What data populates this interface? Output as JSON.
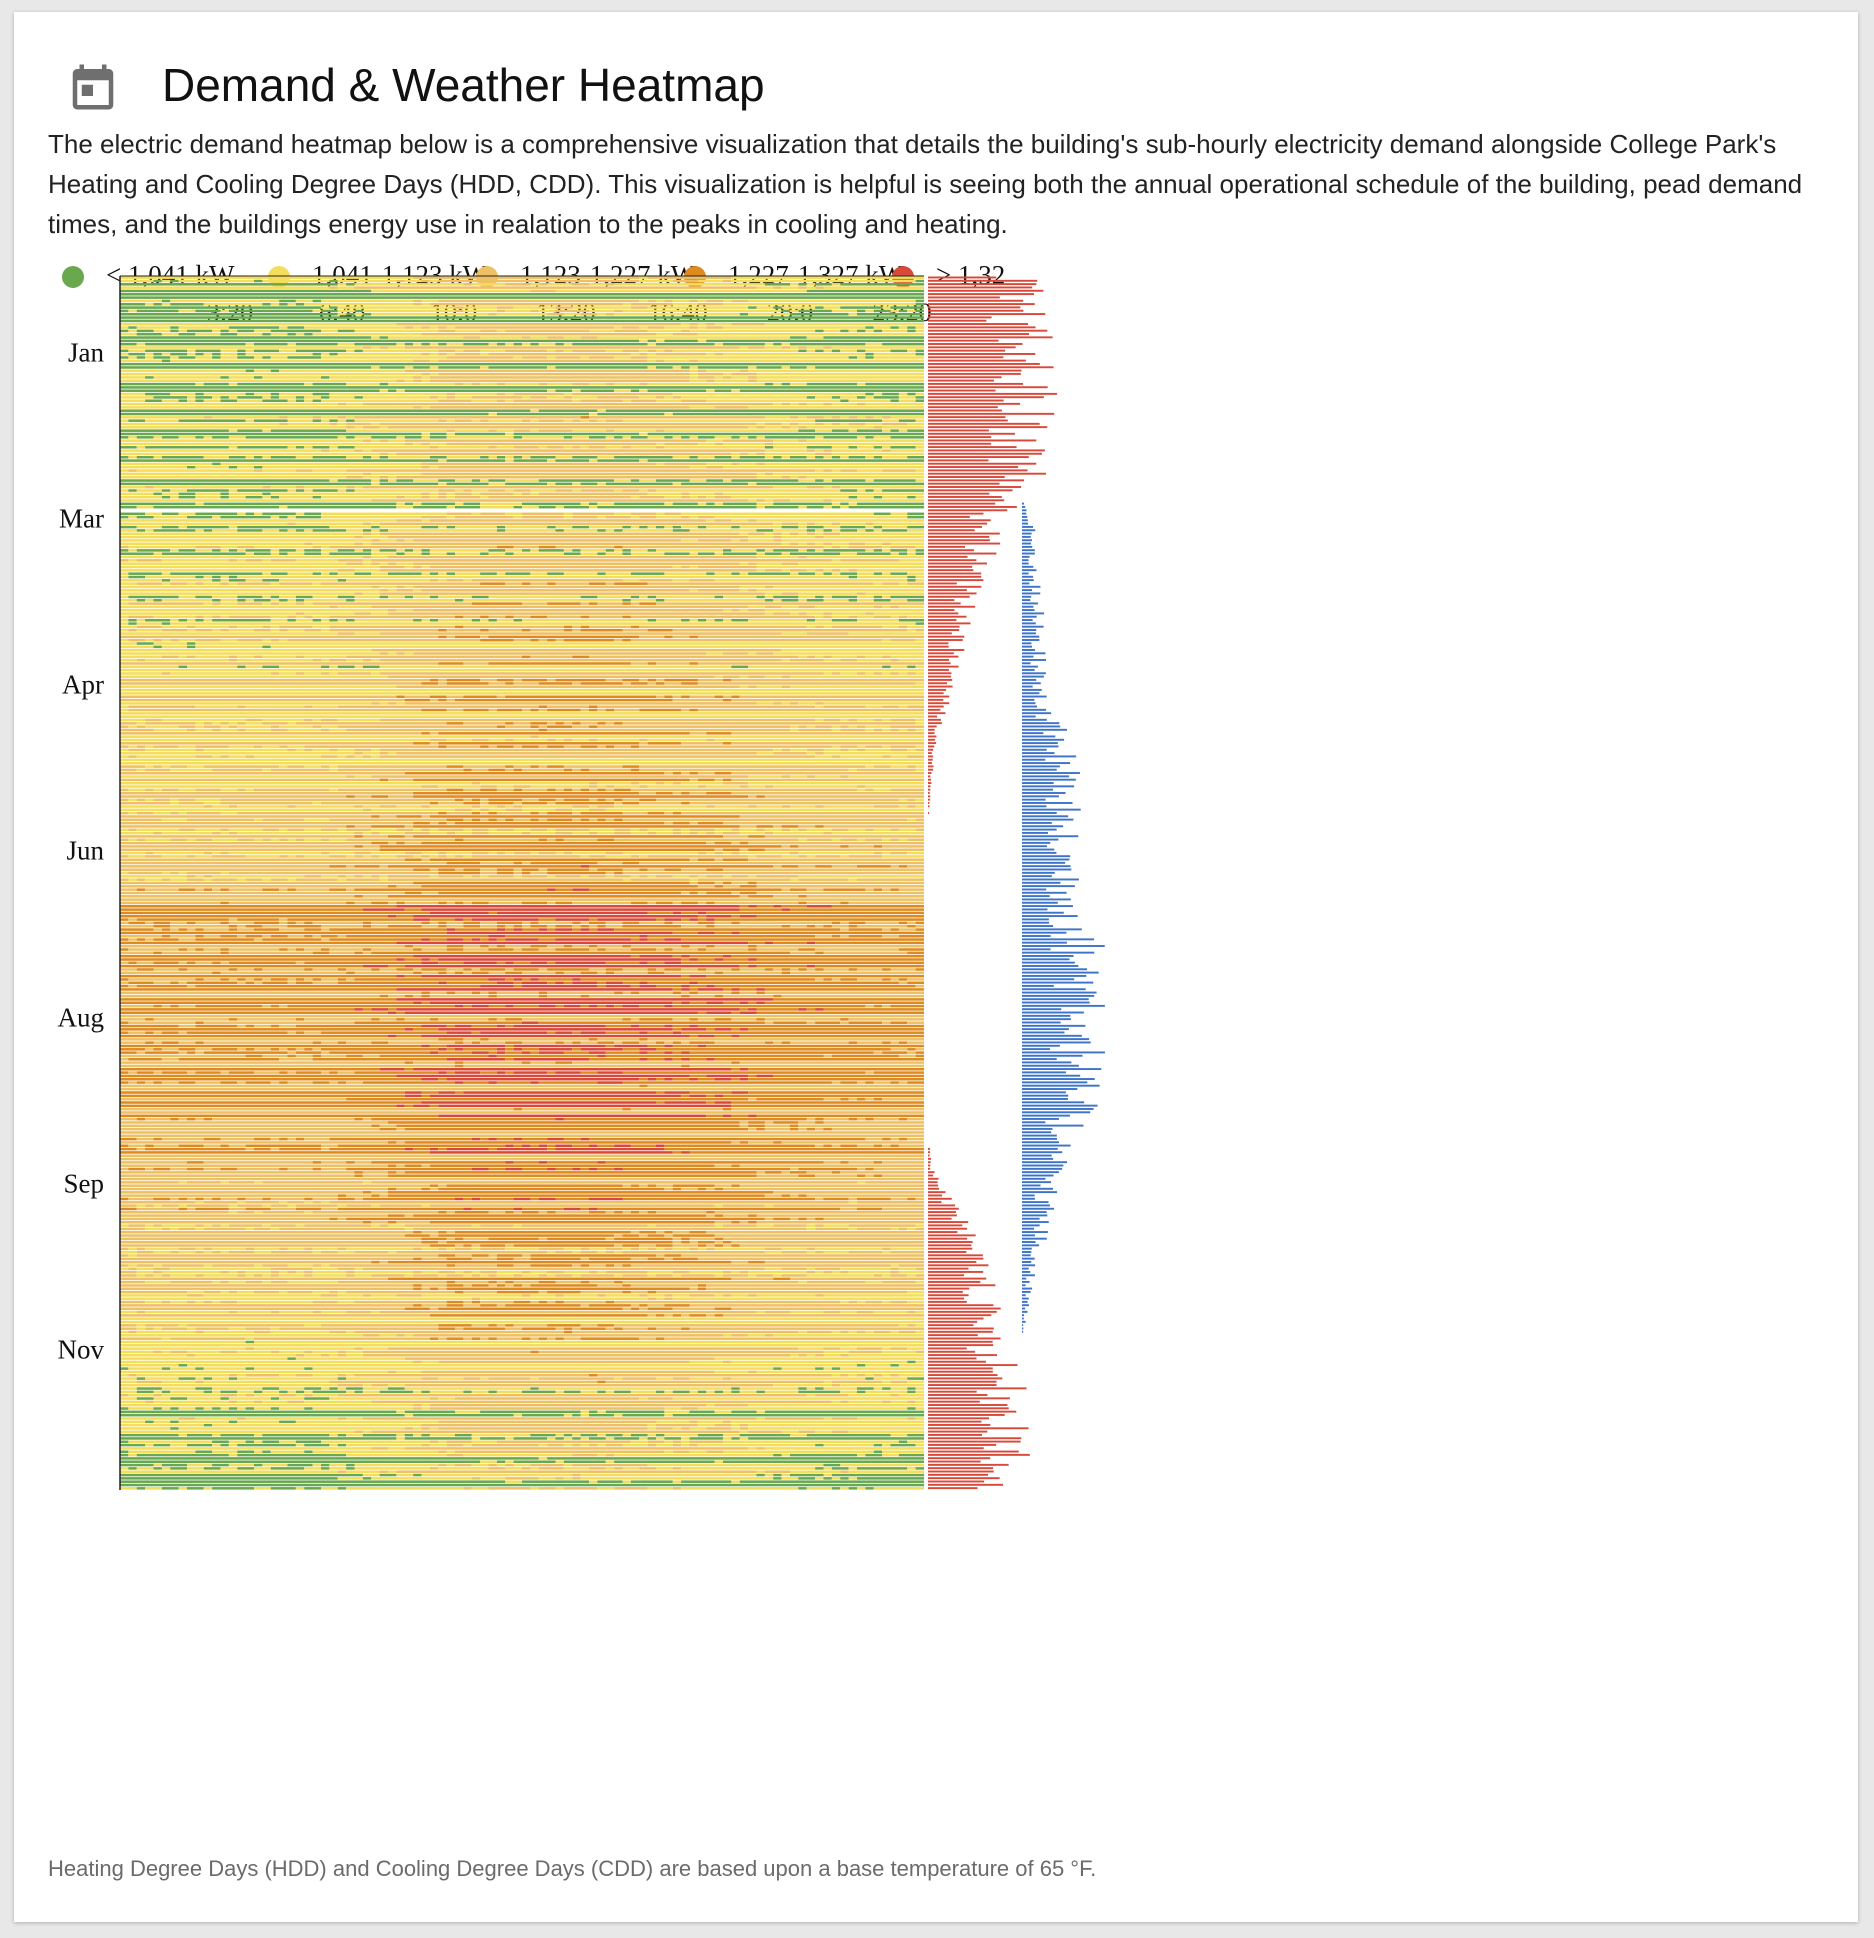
{
  "header": {
    "icon": "calendar-icon",
    "title": "Demand & Weather Heatmap",
    "description": "The electric demand heatmap below is a comprehensive visualization that details the building's sub-hourly electricity demand alongside College Park's Heating and Cooling Degree Days (HDD, CDD). This visualization is helpful is seeing both the annual operational schedule of the building, pead demand times, and the buildings energy use in realation to the peaks in cooling and heating."
  },
  "footnote": "Heating Degree Days (HDD) and Cooling Degree Days (CDD) are based upon a base temperature of 65 °F.",
  "chart_data": {
    "type": "heatmap",
    "legend": [
      {
        "label": "< 1,041 kW",
        "color": "#6aa84f"
      },
      {
        "label": "1,041-1,123 kW",
        "color": "#f4dd5a"
      },
      {
        "label": "1,123-1,227 kW",
        "color": "#eec064"
      },
      {
        "label": "1,227-1,327 kW",
        "color": "#de8a1f"
      },
      {
        "label": "> 1,32",
        "color": "#d9493a"
      }
    ],
    "x_ticks": [
      "3:20",
      "6:40",
      "10:0",
      "13:20",
      "16:40",
      "20:0",
      "23:20"
    ],
    "y_ticks": [
      "Jan",
      "Mar",
      "Apr",
      "Jun",
      "Aug",
      "Sep",
      "Nov"
    ],
    "month_tick_day_index": [
      17,
      67,
      117,
      167,
      217,
      267,
      317
    ],
    "days": 365,
    "hdd_color": "#d9493a",
    "cdd_color": "#3d74c9",
    "hdd_profile_days": [
      0,
      30,
      60,
      67,
      90,
      118,
      140,
      150,
      165,
      180,
      200,
      230,
      255,
      268,
      285,
      300,
      320,
      345,
      364
    ],
    "hdd_profile_values": [
      26,
      30,
      28,
      22,
      13,
      8,
      2,
      1,
      0,
      0,
      0,
      0,
      0,
      1,
      10,
      15,
      18,
      26,
      20
    ],
    "cdd_profile_days": [
      0,
      66,
      75,
      100,
      125,
      145,
      170,
      200,
      220,
      235,
      250,
      265,
      280,
      300,
      320,
      364
    ],
    "cdd_profile_values": [
      0,
      0,
      3,
      5,
      6,
      14,
      13,
      19,
      23,
      19,
      17,
      11,
      8,
      3,
      0,
      0
    ],
    "demand_seasonal_days": [
      0,
      40,
      66,
      100,
      140,
      160,
      180,
      190,
      210,
      240,
      260,
      280,
      300,
      320,
      340,
      364
    ],
    "demand_seasonal_kw": [
      1050,
      1060,
      1070,
      1100,
      1130,
      1150,
      1170,
      1260,
      1250,
      1240,
      1220,
      1180,
      1150,
      1110,
      1070,
      1040
    ],
    "demand_daily_profile_hours": [
      0,
      6,
      8,
      10,
      14,
      18,
      20,
      24
    ],
    "demand_daily_profile_kw": [
      0,
      0,
      40,
      90,
      100,
      60,
      25,
      0
    ],
    "gap_day_index": 70
  }
}
